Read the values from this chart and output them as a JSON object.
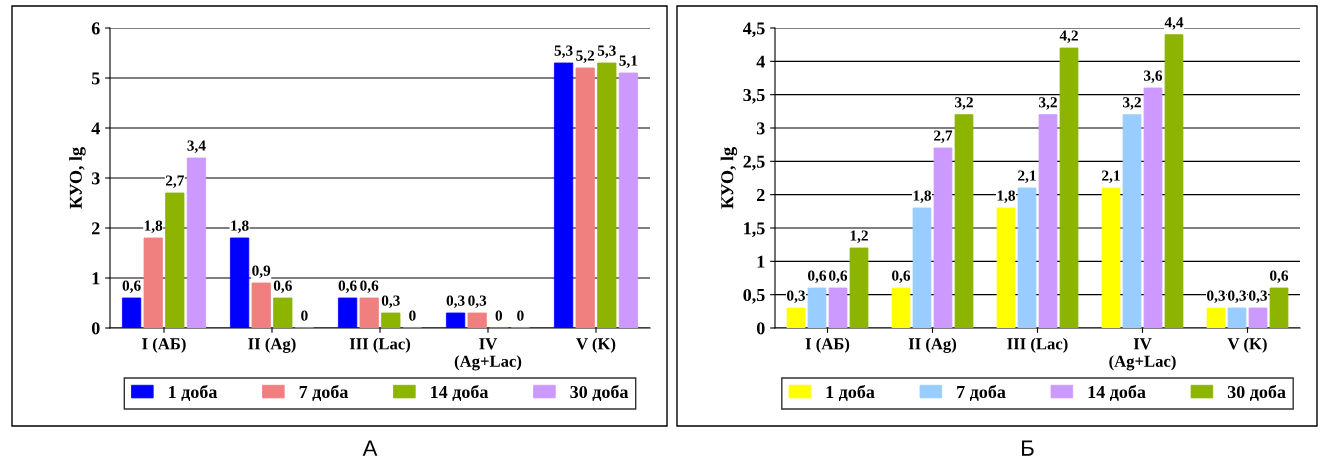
{
  "chart_data": [
    {
      "type": "bar",
      "ylabel": "КУО, lg",
      "categories": [
        "I (АБ)",
        "II (Ag)",
        "III (Lac)",
        "IV\n(Ag+Lac)",
        "V (K)"
      ],
      "series": [
        {
          "name": "1 доба",
          "color": "#0000ff",
          "values": [
            0.6,
            1.8,
            0.6,
            0.3,
            5.3
          ],
          "value_labels": [
            "0,6",
            "1,8",
            "0,6",
            "0,3",
            "5,3"
          ]
        },
        {
          "name": "7 доба",
          "color": "#f08080",
          "values": [
            1.8,
            0.9,
            0.6,
            0.3,
            5.2
          ],
          "value_labels": [
            "1,8",
            "0,9",
            "0,6",
            "0,3",
            "5,2"
          ]
        },
        {
          "name": "14 доба",
          "color": "#8cb400",
          "values": [
            2.7,
            0.6,
            0.3,
            0,
            5.3
          ],
          "value_labels": [
            "2,7",
            "0,6",
            "0,3",
            "0",
            "5,3"
          ]
        },
        {
          "name": "30 доба",
          "color": "#cc99ff",
          "values": [
            3.4,
            0,
            0,
            0,
            5.1
          ],
          "value_labels": [
            "3,4",
            "0",
            "0",
            "0",
            "5,1"
          ]
        }
      ],
      "ylim": [
        0,
        6
      ],
      "yticks": [
        0,
        1,
        2,
        3,
        4,
        5,
        6
      ],
      "grid": "y",
      "legend": "bottom",
      "annotations": [
        "А"
      ]
    },
    {
      "type": "bar",
      "ylabel": "КУО, lg",
      "categories": [
        "I (АБ)",
        "II (Ag)",
        "III (Lac)",
        "IV\n(Ag+Lac)",
        "V (K)"
      ],
      "series": [
        {
          "name": "1 доба",
          "color": "#ffff00",
          "values": [
            0.3,
            0.6,
            1.8,
            2.1,
            0.3
          ],
          "value_labels": [
            "0,3",
            "0,6",
            "1,8",
            "2,1",
            "0,3"
          ]
        },
        {
          "name": "7 доба",
          "color": "#99ccff",
          "values": [
            0.6,
            1.8,
            2.1,
            3.2,
            0.3
          ],
          "value_labels": [
            "0,6",
            "1,8",
            "2,1",
            "3,2",
            "0,3"
          ]
        },
        {
          "name": "14 доба",
          "color": "#cc99ff",
          "values": [
            0.6,
            2.7,
            3.2,
            3.6,
            0.3
          ],
          "value_labels": [
            "0,6",
            "2,7",
            "3,2",
            "3,6",
            "0,3"
          ]
        },
        {
          "name": "30 доба",
          "color": "#8cb400",
          "values": [
            1.2,
            3.2,
            4.2,
            4.4,
            0.6
          ],
          "value_labels": [
            "1,2",
            "3,2",
            "4,2",
            "4,4",
            "0,6"
          ]
        }
      ],
      "ylim": [
        0,
        4.5
      ],
      "yticks": [
        0,
        {
          "value": 0.5,
          "label": "0,5"
        },
        1,
        {
          "value": 1.5,
          "label": "1,5"
        },
        2,
        {
          "value": 2.5,
          "label": "2,5"
        },
        3,
        {
          "value": 3.5,
          "label": "3,5"
        },
        4,
        {
          "value": 4.5,
          "label": "4,5"
        }
      ],
      "grid": "y",
      "legend": "bottom",
      "annotations": [
        "Б"
      ]
    }
  ]
}
